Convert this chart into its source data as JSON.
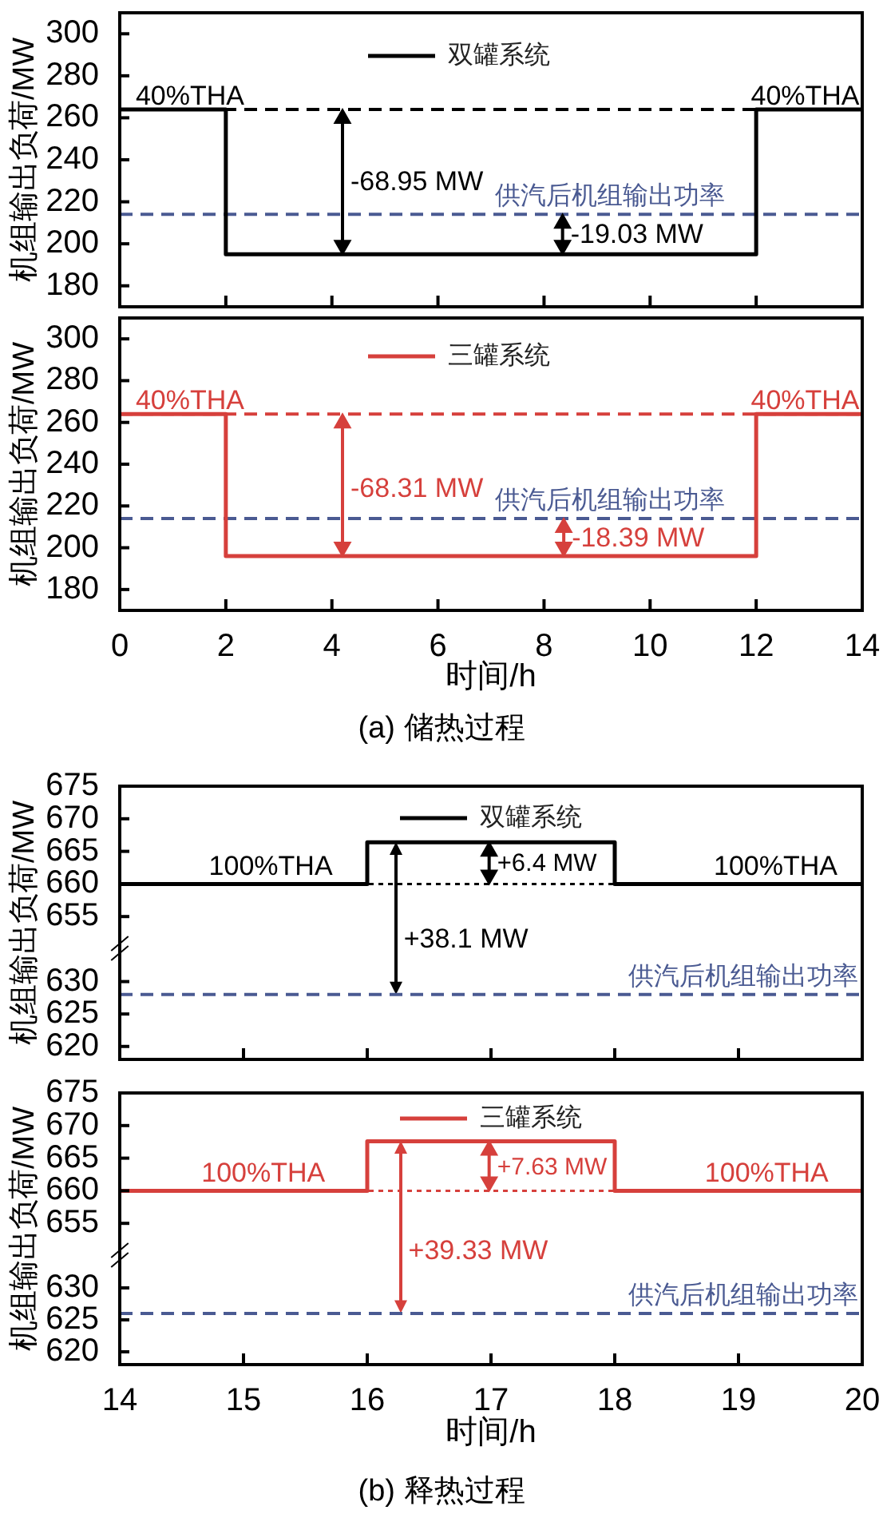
{
  "chart_data": [
    {
      "type": "step",
      "ylabel": "机组输出负荷/MW",
      "x": [
        0,
        2,
        12,
        14
      ],
      "series": [
        {
          "name": "双罐系统",
          "color": "#000000",
          "values": [
            264,
            195,
            264,
            264
          ]
        }
      ],
      "xlim": [
        0,
        14
      ],
      "xticks": [
        0,
        2,
        4,
        6,
        8,
        10,
        12,
        14
      ],
      "ylim": [
        170,
        310
      ],
      "yticks": [
        180,
        200,
        220,
        240,
        260,
        280,
        300
      ],
      "tick_labels": "y",
      "legend": "top",
      "ref_lines": [
        {
          "axis": "y",
          "value": 264,
          "color": "#000000",
          "line_style": "dashed"
        },
        {
          "axis": "y",
          "value": 214,
          "label": "供汽后机组输出功率",
          "color": "#4a5a92",
          "line_style": "dashed"
        }
      ],
      "annotations": [
        "40%THA",
        "40%THA",
        "-68.95 MW",
        "-19.03 MW"
      ]
    },
    {
      "type": "step",
      "xlabel": "时间/h",
      "ylabel": "机组输出负荷/MW",
      "x": [
        0,
        2,
        12,
        14
      ],
      "series": [
        {
          "name": "三罐系统",
          "color": "#d6403c",
          "values": [
            264,
            196,
            264,
            264
          ]
        }
      ],
      "xlim": [
        0,
        14
      ],
      "xticks": [
        0,
        2,
        4,
        6,
        8,
        10,
        12,
        14
      ],
      "ylim": [
        170,
        310
      ],
      "yticks": [
        180,
        200,
        220,
        240,
        260,
        280,
        300
      ],
      "legend": "top",
      "ref_lines": [
        {
          "axis": "y",
          "value": 264,
          "color": "#d6403c",
          "line_style": "dashed"
        },
        {
          "axis": "y",
          "value": 214,
          "label": "供汽后机组输出功率",
          "color": "#4a5a92",
          "line_style": "dashed"
        }
      ],
      "annotations": [
        "40%THA",
        "40%THA",
        "-68.31 MW",
        "-18.39 MW",
        "(a) 储热过程"
      ]
    },
    {
      "type": "step",
      "ylabel": "机组输出负荷/MW",
      "x": [
        14,
        16,
        18,
        20
      ],
      "series": [
        {
          "name": "双罐系统",
          "color": "#000000",
          "values": [
            660,
            666.4,
            660,
            660
          ]
        }
      ],
      "xlim": [
        14,
        20
      ],
      "ylim": [
        650,
        675
      ],
      "yticks": [
        655,
        660,
        665,
        670,
        675
      ],
      "tick_labels": "y",
      "legend": "top",
      "ref_lines": [
        {
          "axis": "y",
          "value": 660,
          "color": "#000000",
          "line_style": "dotted"
        }
      ],
      "annotations": [
        "100%THA",
        "100%THA",
        "+6.4 MW",
        "+38.1 MW"
      ]
    },
    {
      "type": "line",
      "x": [
        14,
        20
      ],
      "series": [
        {
          "name": "供汽后机组输出功率",
          "color": "#4a5a92",
          "values": [
            628,
            628
          ]
        }
      ],
      "line_style": "dashed",
      "xlim": [
        14,
        20
      ],
      "xticks": [
        14,
        15,
        16,
        17,
        18,
        19,
        20
      ],
      "ylim": [
        618,
        635
      ],
      "yticks": [
        620,
        625,
        630
      ],
      "tick_labels": "y"
    },
    {
      "type": "step",
      "ylabel": "机组输出负荷/MW",
      "x": [
        14,
        16,
        18,
        20
      ],
      "series": [
        {
          "name": "三罐系统",
          "color": "#d6403c",
          "values": [
            660,
            667.6,
            660,
            660
          ]
        }
      ],
      "xlim": [
        14,
        20
      ],
      "ylim": [
        650,
        675
      ],
      "yticks": [
        655,
        660,
        665,
        670,
        675
      ],
      "tick_labels": "y",
      "legend": "top",
      "ref_lines": [
        {
          "axis": "y",
          "value": 660,
          "color": "#d6403c",
          "line_style": "dotted"
        }
      ],
      "annotations": [
        "100%THA",
        "100%THA",
        "+7.63 MW",
        "+39.33 MW"
      ]
    },
    {
      "type": "line",
      "xlabel": "时间/h",
      "x": [
        14,
        20
      ],
      "series": [
        {
          "name": "供汽后机组输出功率",
          "color": "#4a5a92",
          "values": [
            626,
            626
          ]
        }
      ],
      "line_style": "dashed",
      "xlim": [
        14,
        20
      ],
      "xticks": [
        14,
        15,
        16,
        17,
        18,
        19,
        20
      ],
      "ylim": [
        618,
        635
      ],
      "yticks": [
        620,
        625,
        630
      ],
      "annotations": [
        "(b) 释热过程"
      ]
    }
  ]
}
